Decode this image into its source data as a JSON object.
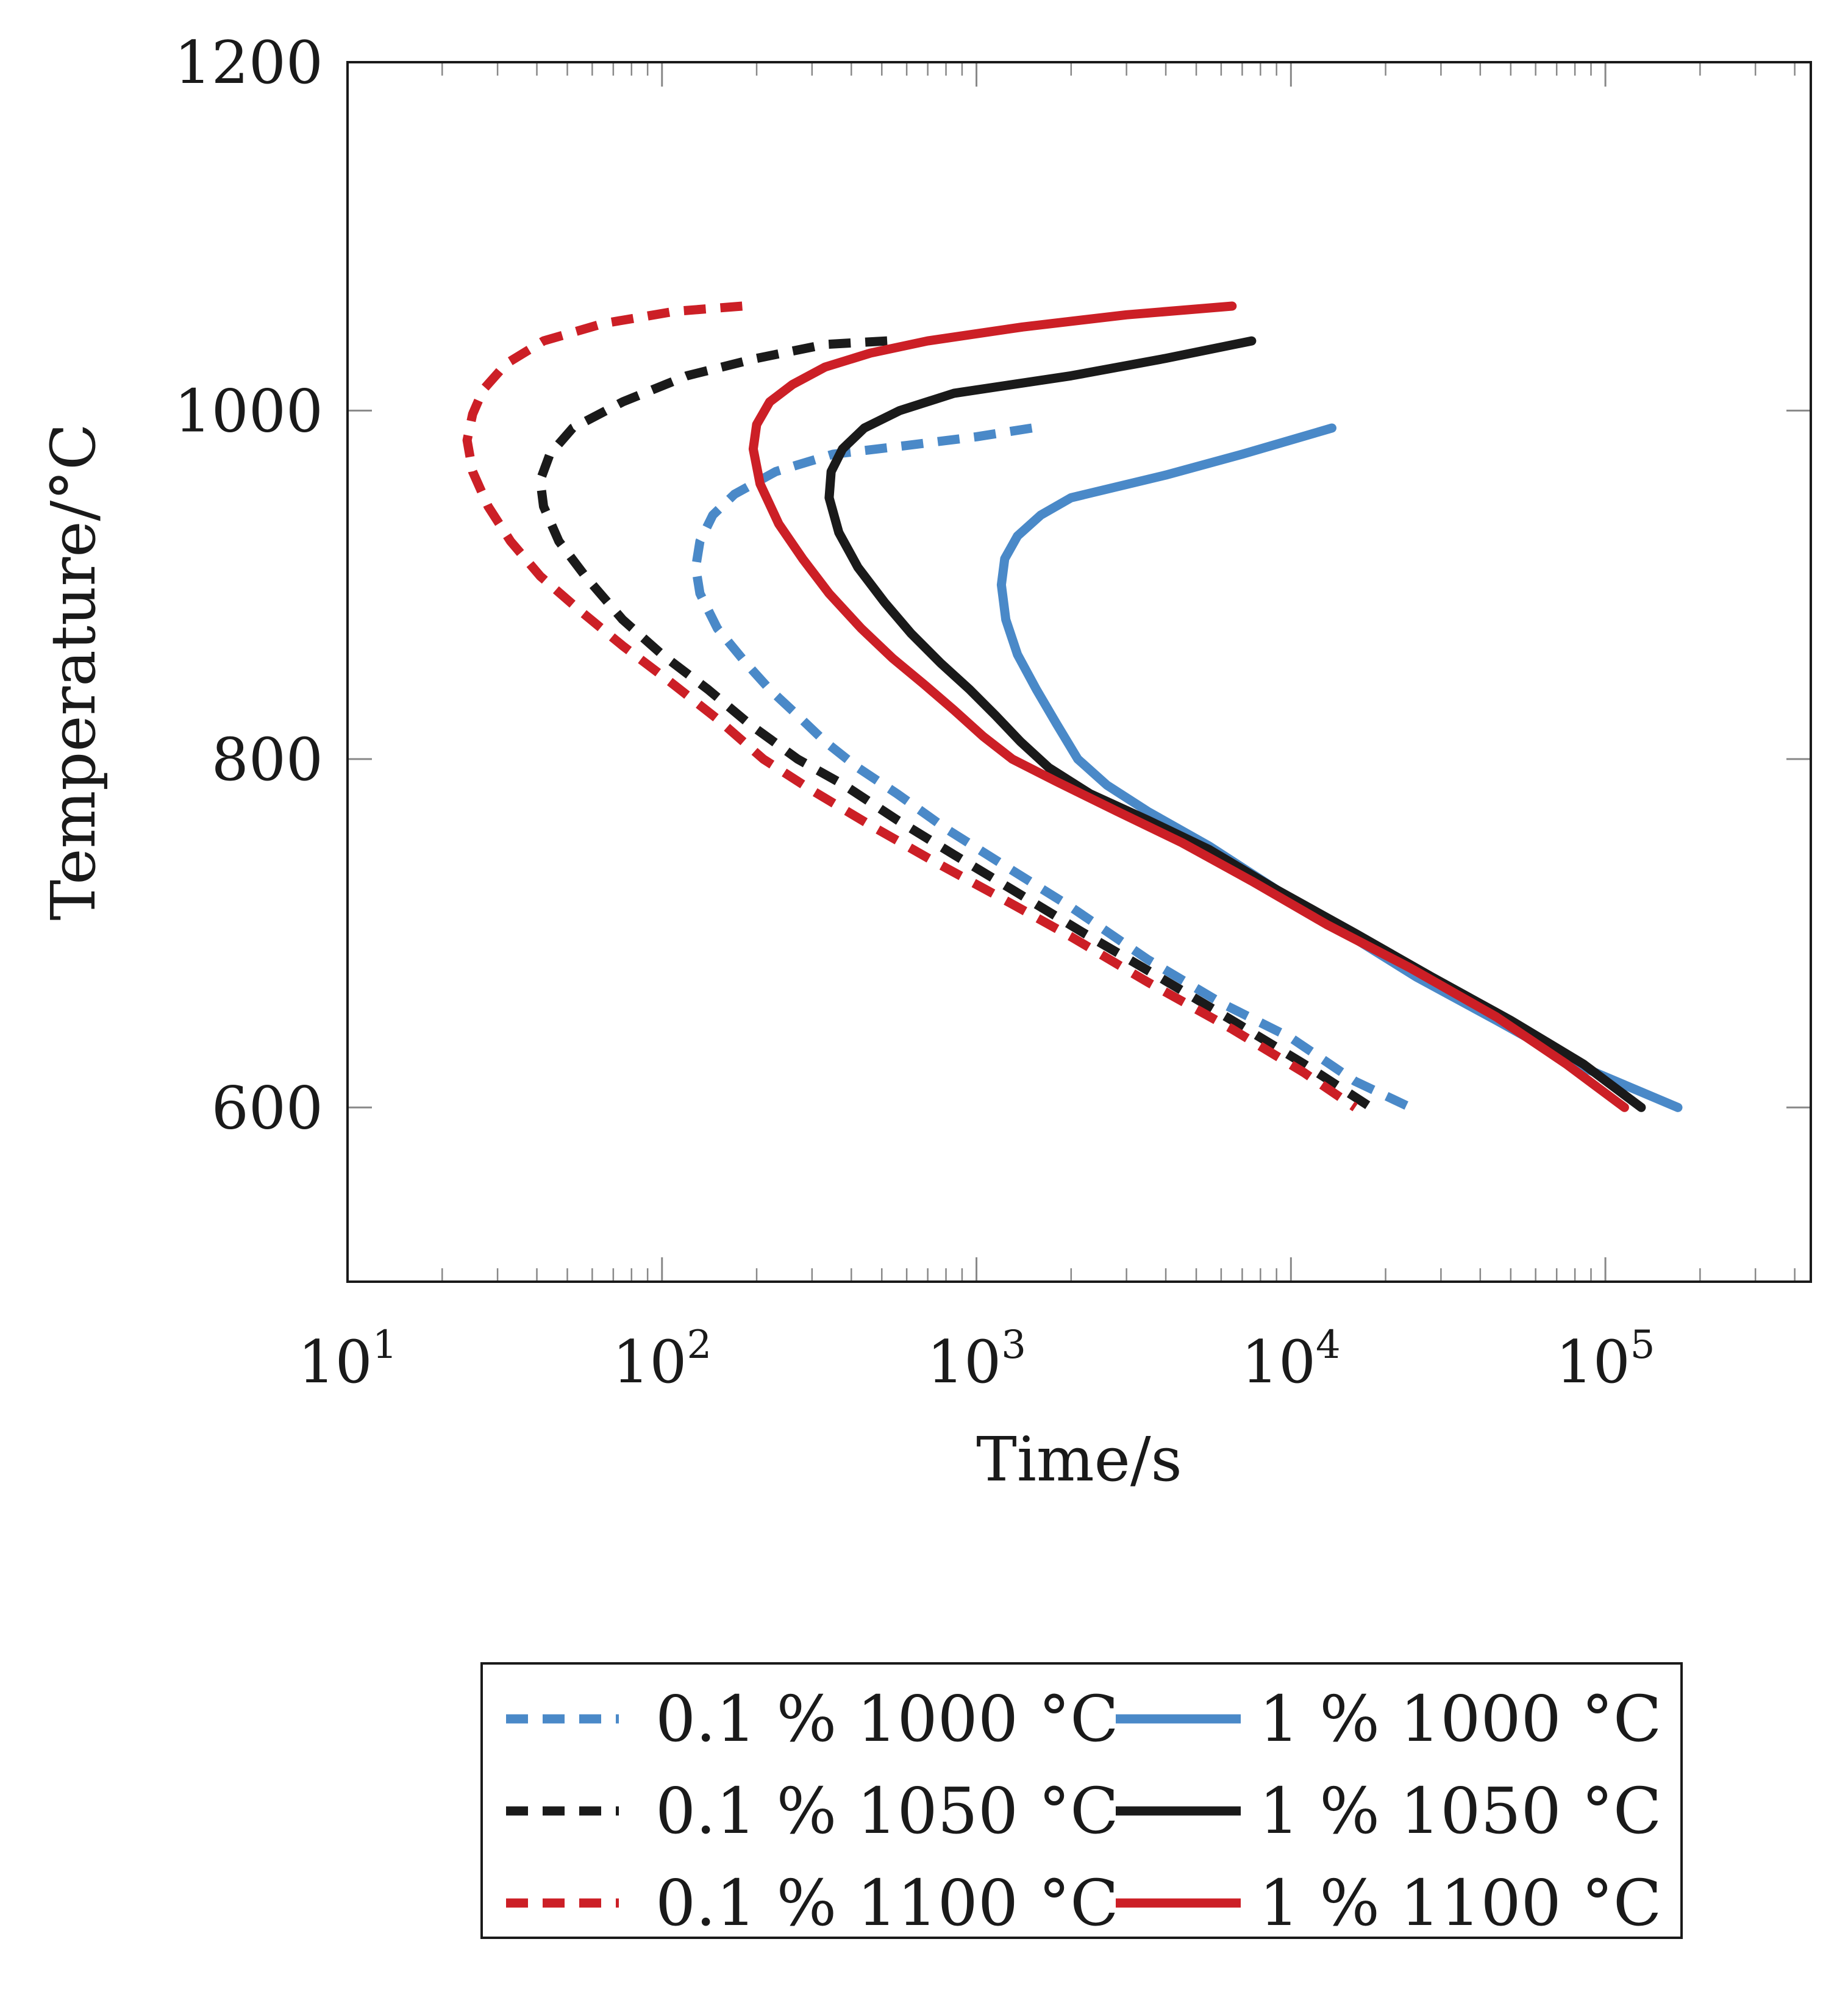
{
  "chart_data": {
    "type": "line",
    "title": "",
    "xlabel": "Time/s",
    "ylabel": "Temperature/°C",
    "xscale": "log",
    "xlim": [
      10,
      450000
    ],
    "ylim": [
      500,
      1200
    ],
    "x_ticks": [
      {
        "base": "10",
        "exp": "1",
        "value": 10
      },
      {
        "base": "10",
        "exp": "2",
        "value": 100
      },
      {
        "base": "10",
        "exp": "3",
        "value": 1000
      },
      {
        "base": "10",
        "exp": "4",
        "value": 10000
      },
      {
        "base": "10",
        "exp": "5",
        "value": 100000
      }
    ],
    "y_ticks": [
      {
        "label": "600",
        "value": 600
      },
      {
        "label": "800",
        "value": 800
      },
      {
        "label": "1000",
        "value": 1000
      },
      {
        "label": "1200",
        "value": 1200
      }
    ],
    "legend_position": "below",
    "series": [
      {
        "name": "0.1 % 1000 °C",
        "color": "#4a89c8",
        "dash": "dashed",
        "points": [
          [
            1500,
            990
          ],
          [
            1000,
            985
          ],
          [
            600,
            980
          ],
          [
            350,
            975
          ],
          [
            230,
            965
          ],
          [
            170,
            952
          ],
          [
            145,
            940
          ],
          [
            132,
            925
          ],
          [
            128,
            910
          ],
          [
            132,
            895
          ],
          [
            150,
            875
          ],
          [
            185,
            855
          ],
          [
            220,
            840
          ],
          [
            270,
            825
          ],
          [
            330,
            810
          ],
          [
            420,
            795
          ],
          [
            560,
            780
          ],
          [
            800,
            760
          ],
          [
            1200,
            740
          ],
          [
            2000,
            715
          ],
          [
            3500,
            685
          ],
          [
            6000,
            660
          ],
          [
            10000,
            640
          ],
          [
            16000,
            615
          ],
          [
            24000,
            600
          ]
        ]
      },
      {
        "name": "0.1 % 1050 °C",
        "color": "#1a1a1a",
        "dash": "dashed",
        "points": [
          [
            520,
            1040
          ],
          [
            330,
            1038
          ],
          [
            200,
            1030
          ],
          [
            120,
            1020
          ],
          [
            75,
            1005
          ],
          [
            52,
            990
          ],
          [
            44,
            975
          ],
          [
            41,
            960
          ],
          [
            42,
            945
          ],
          [
            47,
            925
          ],
          [
            57,
            905
          ],
          [
            75,
            880
          ],
          [
            100,
            860
          ],
          [
            140,
            840
          ],
          [
            190,
            820
          ],
          [
            270,
            800
          ],
          [
            380,
            785
          ],
          [
            560,
            765
          ],
          [
            850,
            745
          ],
          [
            1300,
            725
          ],
          [
            2200,
            700
          ],
          [
            3800,
            675
          ],
          [
            6500,
            650
          ],
          [
            11000,
            625
          ],
          [
            18000,
            600
          ]
        ]
      },
      {
        "name": "0.1 % 1100 °C",
        "color": "#cc1f26",
        "dash": "dashed",
        "points": [
          [
            180,
            1060
          ],
          [
            110,
            1057
          ],
          [
            65,
            1050
          ],
          [
            42,
            1040
          ],
          [
            32,
            1027
          ],
          [
            27,
            1012
          ],
          [
            25,
            998
          ],
          [
            24,
            983
          ],
          [
            25,
            965
          ],
          [
            28,
            945
          ],
          [
            33,
            925
          ],
          [
            41,
            905
          ],
          [
            55,
            885
          ],
          [
            75,
            865
          ],
          [
            105,
            845
          ],
          [
            150,
            823
          ],
          [
            210,
            800
          ],
          [
            300,
            782
          ],
          [
            460,
            762
          ],
          [
            720,
            742
          ],
          [
            1150,
            722
          ],
          [
            2000,
            698
          ],
          [
            3500,
            672
          ],
          [
            6500,
            645
          ],
          [
            11000,
            620
          ],
          [
            16000,
            600
          ]
        ]
      },
      {
        "name": "1 % 1000 °C",
        "color": "#4a89c8",
        "dash": "solid",
        "points": [
          [
            13500,
            990
          ],
          [
            7000,
            975
          ],
          [
            4000,
            963
          ],
          [
            2000,
            950
          ],
          [
            1600,
            940
          ],
          [
            1350,
            928
          ],
          [
            1230,
            915
          ],
          [
            1200,
            900
          ],
          [
            1240,
            880
          ],
          [
            1350,
            860
          ],
          [
            1550,
            840
          ],
          [
            1800,
            820
          ],
          [
            2100,
            800
          ],
          [
            2600,
            785
          ],
          [
            3500,
            770
          ],
          [
            5500,
            750
          ],
          [
            9000,
            725
          ],
          [
            15000,
            700
          ],
          [
            25000,
            675
          ],
          [
            45000,
            650
          ],
          [
            80000,
            625
          ],
          [
            170000,
            600
          ]
        ]
      },
      {
        "name": "1 % 1050 °C",
        "color": "#1a1a1a",
        "dash": "solid",
        "points": [
          [
            7500,
            1040
          ],
          [
            4000,
            1030
          ],
          [
            2000,
            1020
          ],
          [
            850,
            1010
          ],
          [
            570,
            1000
          ],
          [
            440,
            990
          ],
          [
            375,
            978
          ],
          [
            345,
            965
          ],
          [
            340,
            950
          ],
          [
            365,
            930
          ],
          [
            420,
            910
          ],
          [
            510,
            890
          ],
          [
            620,
            872
          ],
          [
            770,
            855
          ],
          [
            950,
            840
          ],
          [
            1150,
            825
          ],
          [
            1380,
            810
          ],
          [
            1700,
            795
          ],
          [
            2300,
            780
          ],
          [
            3500,
            765
          ],
          [
            5500,
            748
          ],
          [
            9000,
            725
          ],
          [
            16000,
            700
          ],
          [
            28000,
            675
          ],
          [
            50000,
            650
          ],
          [
            85000,
            625
          ],
          [
            130000,
            600
          ]
        ]
      },
      {
        "name": "1 % 1100 °C",
        "color": "#cc1f26",
        "dash": "solid",
        "points": [
          [
            6500,
            1060
          ],
          [
            3000,
            1055
          ],
          [
            1400,
            1048
          ],
          [
            700,
            1040
          ],
          [
            460,
            1033
          ],
          [
            330,
            1025
          ],
          [
            260,
            1015
          ],
          [
            220,
            1005
          ],
          [
            200,
            992
          ],
          [
            195,
            978
          ],
          [
            205,
            958
          ],
          [
            235,
            935
          ],
          [
            280,
            915
          ],
          [
            340,
            895
          ],
          [
            430,
            875
          ],
          [
            540,
            858
          ],
          [
            680,
            843
          ],
          [
            850,
            828
          ],
          [
            1050,
            813
          ],
          [
            1300,
            800
          ],
          [
            1800,
            787
          ],
          [
            2800,
            770
          ],
          [
            4500,
            752
          ],
          [
            7500,
            730
          ],
          [
            13000,
            705
          ],
          [
            24000,
            680
          ],
          [
            45000,
            652
          ],
          [
            75000,
            625
          ],
          [
            115000,
            600
          ]
        ]
      }
    ]
  }
}
